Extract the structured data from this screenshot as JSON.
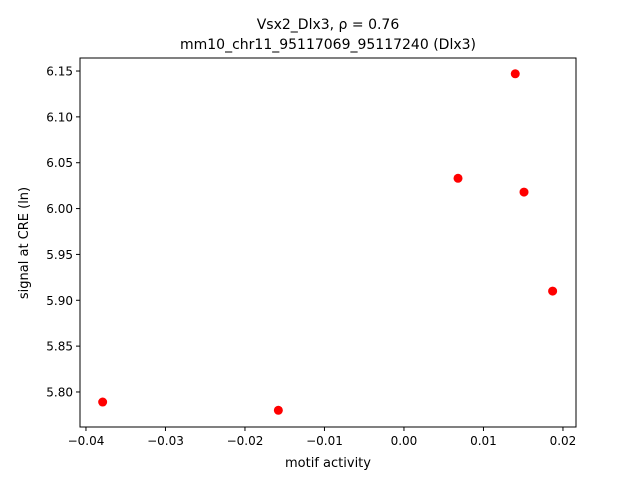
{
  "chart_data": {
    "type": "scatter",
    "title_line1": "Vsx2_Dlx3, ρ = 0.76",
    "title_line2": "mm10_chr11_95117069_95117240 (Dlx3)",
    "xlabel": "motif activity",
    "ylabel": "signal at CRE (ln)",
    "xlim": [
      -0.04075,
      0.02164
    ],
    "ylim": [
      5.7618,
      6.1642
    ],
    "xticks": [
      -0.04,
      -0.03,
      -0.02,
      -0.01,
      0.0,
      0.01,
      0.02
    ],
    "xtick_labels": [
      "−0.04",
      "−0.03",
      "−0.02",
      "−0.01",
      "0.00",
      "0.01",
      "0.02"
    ],
    "yticks": [
      5.8,
      5.85,
      5.9,
      5.95,
      6.0,
      6.05,
      6.1,
      6.15
    ],
    "ytick_labels": [
      "5.80",
      "5.85",
      "5.90",
      "5.95",
      "6.00",
      "6.05",
      "6.10",
      "6.15"
    ],
    "grid": false,
    "point_color": "#ff0000",
    "points": [
      {
        "x": -0.0379,
        "y": 5.789
      },
      {
        "x": -0.0158,
        "y": 5.78
      },
      {
        "x": 0.0068,
        "y": 6.033
      },
      {
        "x": 0.014,
        "y": 6.147
      },
      {
        "x": 0.0151,
        "y": 6.018
      },
      {
        "x": 0.0187,
        "y": 5.91
      }
    ]
  }
}
